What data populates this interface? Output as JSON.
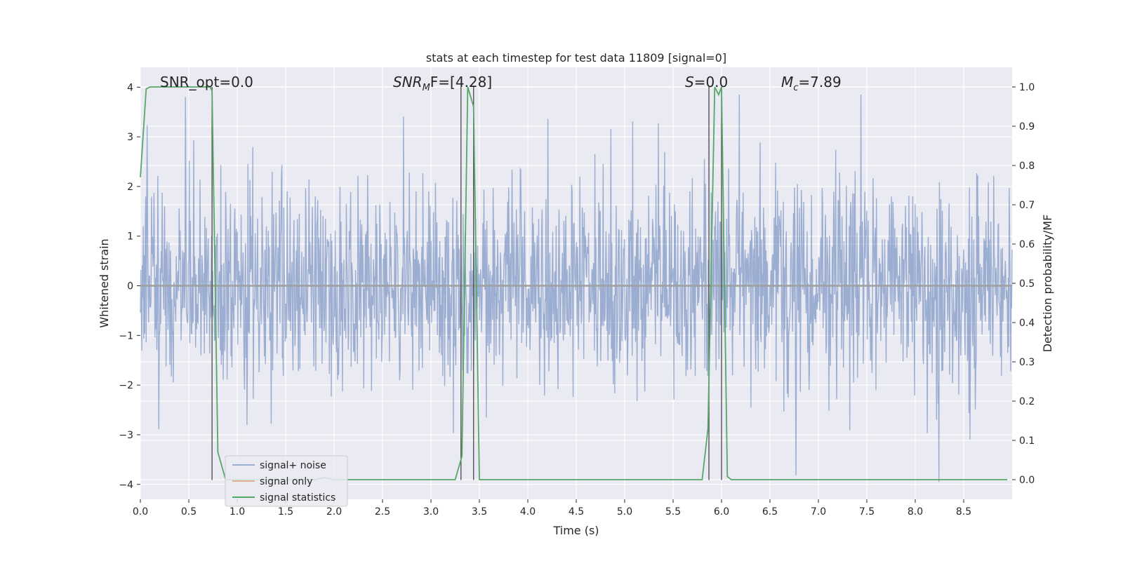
{
  "chart_data": {
    "type": "line",
    "title": "stats at each timestep for test data 11809 [signal=0]",
    "xlabel": "Time (s)",
    "ylabel_left": "Whitened strain",
    "ylabel_right": "Detection probability/MF",
    "xlim": [
      0.0,
      9.0
    ],
    "ylim_left": [
      -4.3,
      4.4
    ],
    "ylim_right": [
      -0.05,
      1.05
    ],
    "x_ticks": [
      0.0,
      0.5,
      1.0,
      1.5,
      2.0,
      2.5,
      3.0,
      3.5,
      4.0,
      4.5,
      5.0,
      5.5,
      6.0,
      6.5,
      7.0,
      7.5,
      8.0,
      8.5
    ],
    "x_tick_labels": [
      "0.0",
      "0.5",
      "1.0",
      "1.5",
      "2.0",
      "2.5",
      "3.0",
      "3.5",
      "4.0",
      "4.5",
      "5.0",
      "5.5",
      "6.0",
      "6.5",
      "7.0",
      "7.5",
      "8.0",
      "8.5"
    ],
    "y_ticks_left": [
      4,
      3,
      2,
      1,
      0,
      -1,
      -2,
      -3,
      -4
    ],
    "y_tick_labels_left": [
      "4",
      "3",
      "2",
      "1",
      "0",
      "−1",
      "−2",
      "−3",
      "−4"
    ],
    "y_ticks_right": [
      1.0,
      0.9,
      0.8,
      0.7,
      0.6,
      0.5,
      0.4,
      0.3,
      0.2,
      0.1,
      0.0
    ],
    "y_tick_labels_right": [
      "1.0",
      "0.9",
      "0.8",
      "0.7",
      "0.6",
      "0.5",
      "0.4",
      "0.3",
      "0.2",
      "0.1",
      "0.0"
    ],
    "annotations": {
      "snr_opt": "SNR_opt=0.0",
      "snr_mf_main": "SNR",
      "snr_mf_sub": "M",
      "snr_mf_rest": "F=[4.28]",
      "s_main": "S",
      "s_rest": "=0.0",
      "mc_main": "M",
      "mc_sub": "c",
      "mc_rest": "=7.89"
    },
    "series": [
      {
        "name": "signal+ noise",
        "color": "#4c72b0",
        "description": "whitened strain noise, approx. gaussian, peaks ~3.8 / -3.9",
        "n_samples": 1800,
        "noise_seed": 11809
      },
      {
        "name": "signal only",
        "color": "#dd8452",
        "values_constant": 0.0
      },
      {
        "name": "signal statistics",
        "color": "#55a868",
        "x": [
          0.0,
          0.06,
          0.1,
          0.2,
          0.4,
          0.6,
          0.72,
          0.74,
          0.8,
          0.88,
          1.0,
          1.5,
          1.8,
          1.9,
          2.0,
          2.5,
          3.0,
          3.25,
          3.32,
          3.38,
          3.44,
          3.5,
          3.6,
          4.0,
          4.5,
          5.0,
          5.5,
          5.8,
          5.86,
          5.93,
          5.97,
          6.0,
          6.06,
          6.1,
          6.5,
          7.0,
          7.5,
          8.0,
          8.5,
          8.95
        ],
        "values": [
          0.77,
          0.995,
          1.0,
          1.0,
          1.0,
          1.0,
          1.0,
          0.99,
          0.07,
          0.0,
          0.0,
          0.0,
          0.0,
          0.005,
          0.0,
          0.0,
          0.0,
          0.0,
          0.06,
          1.0,
          0.95,
          0.0,
          0.0,
          0.0,
          0.0,
          0.0,
          0.0,
          0.0,
          0.13,
          1.0,
          0.98,
          1.0,
          0.008,
          0.0,
          0.0,
          0.0,
          0.0,
          0.0,
          0.0,
          0.0
        ]
      }
    ],
    "vertical_markers": [
      0.74,
      3.31,
      3.44,
      5.87,
      6.0
    ],
    "legend": {
      "placement": "lower-left",
      "entries": [
        "signal+ noise",
        "signal only",
        "signal statistics"
      ]
    },
    "grid": true,
    "background": "#eaeaf2"
  }
}
